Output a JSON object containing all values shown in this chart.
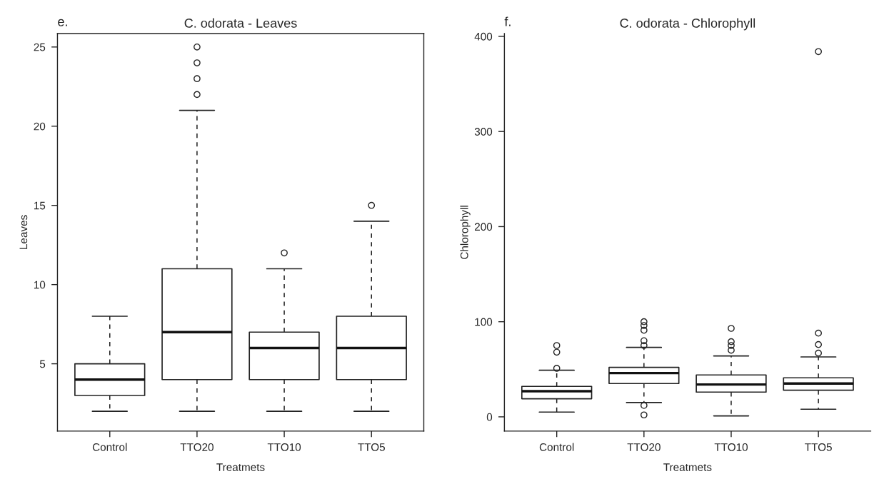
{
  "chart_data": [
    {
      "type": "box",
      "title": "C. odorata - Leaves",
      "annotations": [
        "e."
      ],
      "xlabel": "Treatmets",
      "ylabel": "Leaves",
      "categories": [
        "Control",
        "TTO20",
        "TTO10",
        "TTO5"
      ],
      "ylim": [
        0.75,
        25.85
      ],
      "yticks": [
        5,
        10,
        15,
        20,
        25
      ],
      "grid": false,
      "boxes": [
        {
          "low": 2,
          "q1": 3,
          "median": 4,
          "q3": 5,
          "high": 8
        },
        {
          "low": 2,
          "q1": 4,
          "median": 7,
          "q3": 11,
          "high": 21,
          "outliers": [
            22,
            23,
            24,
            25
          ]
        },
        {
          "low": 2,
          "q1": 4,
          "median": 6,
          "q3": 7,
          "high": 11,
          "outliers": [
            12
          ]
        },
        {
          "low": 2,
          "q1": 4,
          "median": 6,
          "q3": 8,
          "high": 14,
          "outliers": [
            15
          ]
        }
      ]
    },
    {
      "type": "box",
      "title": "C. odorata - Chlorophyll",
      "annotations": [
        "f."
      ],
      "xlabel": "Treatmets",
      "ylabel": "Chlorophyll",
      "categories": [
        "Control",
        "TTO20",
        "TTO10",
        "TTO5"
      ],
      "ylim": [
        -15,
        403
      ],
      "yticks": [
        0,
        100,
        200,
        300,
        400
      ],
      "grid": false,
      "boxes": [
        {
          "low": 5,
          "q1": 19,
          "median": 27,
          "q3": 32,
          "high": 49,
          "outliers": [
            51,
            68,
            75
          ]
        },
        {
          "low": 15,
          "q1": 35,
          "median": 46,
          "q3": 52,
          "high": 73,
          "outliers": [
            2,
            12,
            75,
            80,
            91,
            96,
            100
          ]
        },
        {
          "low": 1,
          "q1": 26,
          "median": 34,
          "q3": 44,
          "high": 64,
          "outliers": [
            70,
            75,
            79,
            93
          ]
        },
        {
          "low": 8,
          "q1": 28,
          "median": 35,
          "q3": 41,
          "high": 63,
          "outliers": [
            67,
            76,
            88,
            384
          ]
        }
      ]
    }
  ]
}
